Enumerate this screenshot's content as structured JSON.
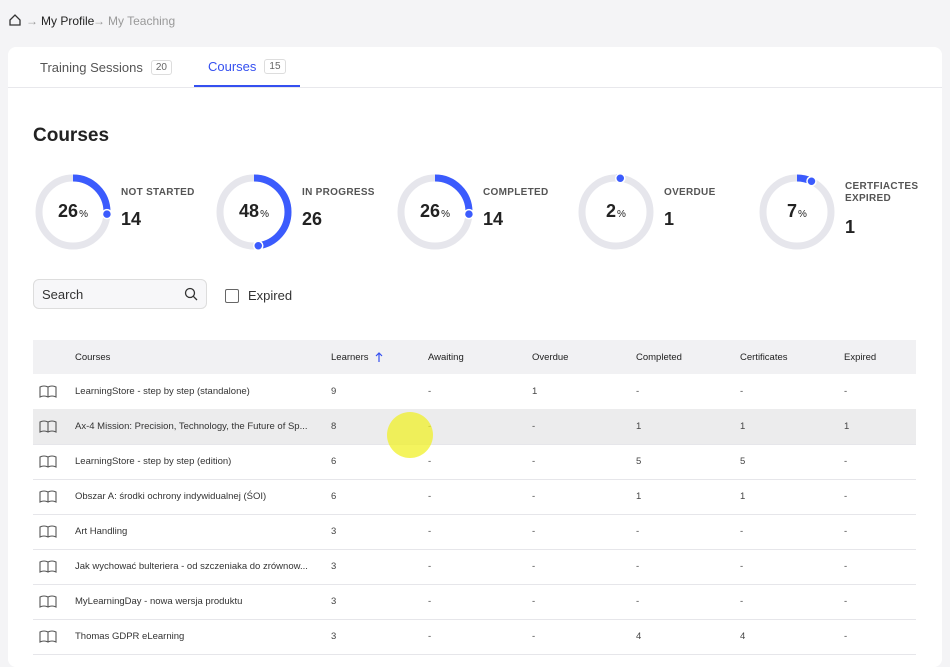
{
  "breadcrumb": [
    "My Profile",
    "My Teaching"
  ],
  "tabs": [
    {
      "label": "Training Sessions",
      "count": 20
    },
    {
      "label": "Courses",
      "count": 15
    }
  ],
  "heading": "Courses",
  "percent_unit": "%",
  "stats": [
    {
      "percent": 26,
      "label": "NOT STARTED",
      "count": 14
    },
    {
      "percent": 48,
      "label": "IN PROGRESS",
      "count": 26
    },
    {
      "percent": 26,
      "label": "COMPLETED",
      "count": 14
    },
    {
      "percent": 2,
      "label": "OVERDUE",
      "count": 1
    },
    {
      "percent": 7,
      "label": "CERTFIACTES EXPIRED",
      "count": 1
    }
  ],
  "search_placeholder": "Search",
  "filter_label": "Expired",
  "table": {
    "columns": [
      "Courses",
      "Learners",
      "Awaiting",
      "Overdue",
      "Completed",
      "Certificates",
      "Expired"
    ],
    "rows": [
      [
        "LearningStore - step by step (standalone)",
        9,
        "-",
        1,
        "-",
        "-",
        "-"
      ],
      [
        "Ax-4 Mission: Precision, Technology, the Future of Sp...",
        8,
        "-",
        "-",
        1,
        1,
        1
      ],
      [
        "LearningStore - step by step (edition)",
        6,
        "-",
        "-",
        5,
        5,
        "-"
      ],
      [
        "Obszar A: środki ochrony indywidualnej (ŚOI)",
        6,
        "-",
        "-",
        1,
        1,
        "-"
      ],
      [
        "Art Handling",
        3,
        "-",
        "-",
        "-",
        "-",
        "-"
      ],
      [
        "Jak wychować bulteriera - od szczeniaka do zrównow...",
        3,
        "-",
        "-",
        "-",
        "-",
        "-"
      ],
      [
        "MyLearningDay - nowa wersja produktu",
        3,
        "-",
        "-",
        "-",
        "-",
        "-"
      ],
      [
        "Thomas GDPR eLearning",
        3,
        "-",
        "-",
        4,
        4,
        "-"
      ]
    ]
  }
}
